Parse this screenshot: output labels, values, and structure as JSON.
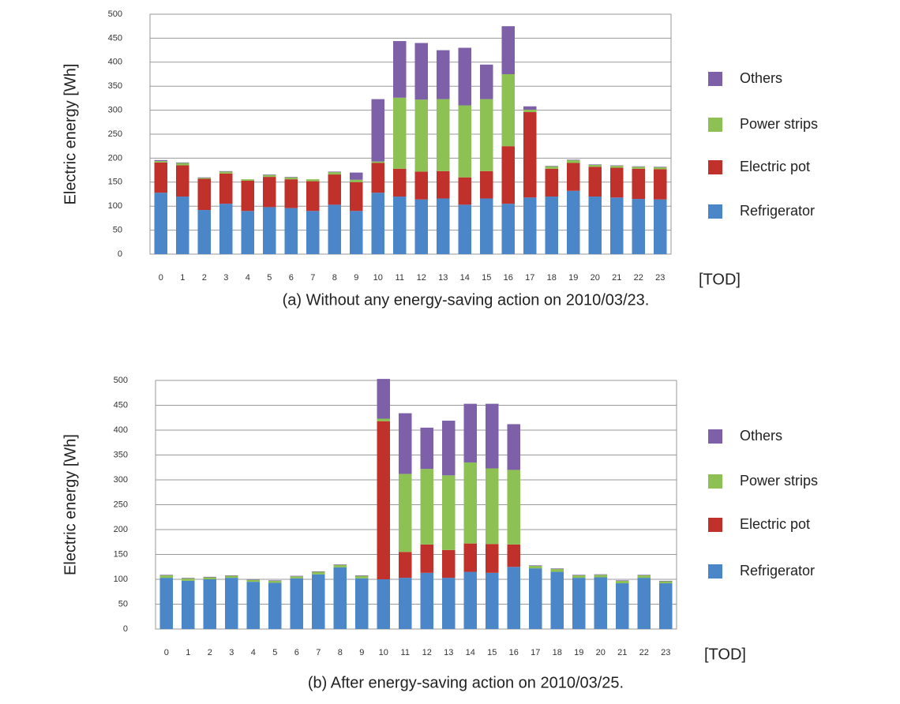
{
  "chart_data": [
    {
      "type": "bar",
      "stacked": true,
      "grid": true,
      "ylabel": "Electric energy [Wh]",
      "xlabel": "[TOD]",
      "caption": "(a) Without any energy-saving action on 2010/03/23.",
      "categories": [
        "0",
        "1",
        "2",
        "3",
        "4",
        "5",
        "6",
        "7",
        "8",
        "9",
        "10",
        "11",
        "12",
        "13",
        "14",
        "15",
        "16",
        "17",
        "18",
        "19",
        "20",
        "21",
        "22",
        "23"
      ],
      "ylim": [
        0,
        500
      ],
      "yticks": [
        0,
        50,
        100,
        150,
        200,
        250,
        300,
        350,
        400,
        450,
        500
      ],
      "series": [
        {
          "name": "Refrigerator",
          "color": "#4a86c8",
          "values": [
            128,
            120,
            92,
            105,
            90,
            98,
            96,
            90,
            103,
            90,
            128,
            120,
            114,
            116,
            103,
            116,
            105,
            118,
            120,
            132,
            120,
            118,
            115,
            114
          ]
        },
        {
          "name": "Electric pot",
          "color": "#c0312b",
          "values": [
            63,
            65,
            65,
            63,
            63,
            63,
            60,
            62,
            63,
            60,
            62,
            58,
            58,
            57,
            57,
            57,
            120,
            178,
            58,
            58,
            62,
            62,
            63,
            63
          ]
        },
        {
          "name": "Power strips",
          "color": "#8dc153",
          "values": [
            3,
            5,
            2,
            4,
            3,
            4,
            4,
            4,
            5,
            5,
            3,
            148,
            150,
            150,
            150,
            150,
            150,
            5,
            5,
            6,
            4,
            4,
            4,
            4
          ]
        },
        {
          "name": "Others",
          "color": "#7d60a8",
          "values": [
            2,
            1,
            1,
            1,
            0,
            1,
            1,
            0,
            1,
            15,
            130,
            118,
            118,
            102,
            120,
            72,
            100,
            7,
            1,
            1,
            1,
            1,
            1,
            1
          ]
        }
      ]
    },
    {
      "type": "bar",
      "stacked": true,
      "grid": true,
      "ylabel": "Electric energy [Wh]",
      "xlabel": "[TOD]",
      "caption": "(b) After energy-saving action on 2010/03/25.",
      "categories": [
        "0",
        "1",
        "2",
        "3",
        "4",
        "5",
        "6",
        "7",
        "8",
        "9",
        "10",
        "11",
        "12",
        "13",
        "14",
        "15",
        "16",
        "17",
        "18",
        "19",
        "20",
        "21",
        "22",
        "23"
      ],
      "ylim": [
        0,
        500
      ],
      "yticks": [
        0,
        50,
        100,
        150,
        200,
        250,
        300,
        350,
        400,
        450,
        500
      ],
      "series": [
        {
          "name": "Refrigerator",
          "color": "#4a86c8",
          "values": [
            103,
            97,
            100,
            103,
            95,
            93,
            102,
            110,
            124,
            102,
            100,
            103,
            113,
            103,
            115,
            113,
            125,
            122,
            115,
            103,
            104,
            92,
            103,
            92
          ]
        },
        {
          "name": "Electric pot",
          "color": "#c0312b",
          "values": [
            0,
            0,
            0,
            0,
            0,
            0,
            0,
            0,
            0,
            0,
            318,
            52,
            57,
            56,
            57,
            58,
            45,
            0,
            0,
            0,
            0,
            0,
            0,
            0
          ]
        },
        {
          "name": "Power strips",
          "color": "#8dc153",
          "values": [
            5,
            5,
            4,
            4,
            4,
            4,
            4,
            5,
            5,
            5,
            5,
            157,
            152,
            150,
            163,
            152,
            150,
            5,
            6,
            5,
            5,
            5,
            5,
            4
          ]
        },
        {
          "name": "Others",
          "color": "#7d60a8",
          "values": [
            1,
            1,
            1,
            1,
            1,
            1,
            1,
            1,
            1,
            1,
            80,
            122,
            83,
            110,
            118,
            130,
            92,
            1,
            1,
            1,
            1,
            1,
            1,
            1
          ]
        }
      ]
    }
  ]
}
